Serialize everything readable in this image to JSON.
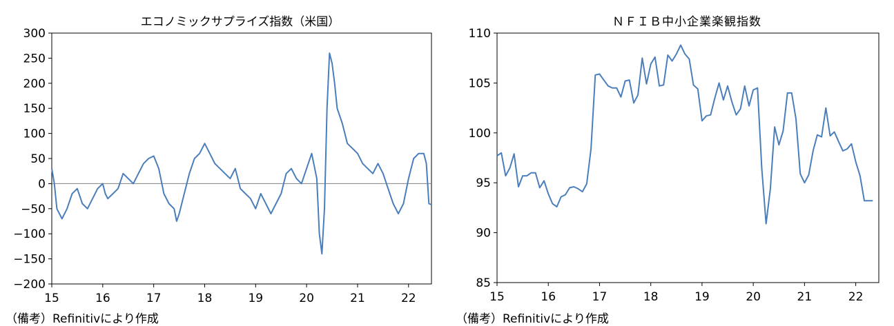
{
  "chart_data": [
    {
      "type": "line",
      "title": "エコノミックサプライズ指数（米国）",
      "source": "（備考）Refinitivにより作成",
      "xlabel": "",
      "ylabel": "",
      "xlim": [
        2015.0,
        2022.45
      ],
      "ylim": [
        -200,
        300
      ],
      "yticks": [
        "300",
        "250",
        "200",
        "150",
        "100",
        "50",
        "0",
        "−50",
        "−100",
        "−150",
        "−200"
      ],
      "ytick_values": [
        300,
        250,
        200,
        150,
        100,
        50,
        0,
        -50,
        -100,
        -150,
        -200
      ],
      "xticks": [
        "15",
        "16",
        "17",
        "18",
        "19",
        "20",
        "21",
        "22"
      ],
      "xtick_values": [
        2015,
        2016,
        2017,
        2018,
        2019,
        2020,
        2021,
        2022
      ],
      "zero_line": true,
      "grid": false,
      "color": "#4a7ebb",
      "x": [
        2015.0,
        2015.05,
        2015.1,
        2015.2,
        2015.3,
        2015.4,
        2015.5,
        2015.6,
        2015.7,
        2015.8,
        2015.9,
        2016.0,
        2016.05,
        2016.1,
        2016.2,
        2016.3,
        2016.4,
        2016.5,
        2016.6,
        2016.7,
        2016.8,
        2016.9,
        2017.0,
        2017.1,
        2017.2,
        2017.3,
        2017.4,
        2017.45,
        2017.5,
        2017.6,
        2017.7,
        2017.8,
        2017.9,
        2018.0,
        2018.1,
        2018.2,
        2018.3,
        2018.4,
        2018.5,
        2018.6,
        2018.7,
        2018.8,
        2018.9,
        2019.0,
        2019.1,
        2019.2,
        2019.3,
        2019.4,
        2019.5,
        2019.6,
        2019.7,
        2019.8,
        2019.9,
        2020.0,
        2020.1,
        2020.2,
        2020.25,
        2020.3,
        2020.35,
        2020.4,
        2020.45,
        2020.5,
        2020.55,
        2020.6,
        2020.7,
        2020.8,
        2020.9,
        2021.0,
        2021.1,
        2021.2,
        2021.3,
        2021.4,
        2021.5,
        2021.6,
        2021.7,
        2021.8,
        2021.9,
        2022.0,
        2022.1,
        2022.2,
        2022.3,
        2022.35,
        2022.4,
        2022.45
      ],
      "values": [
        30,
        0,
        -50,
        -70,
        -50,
        -20,
        -10,
        -40,
        -50,
        -30,
        -10,
        0,
        -20,
        -30,
        -20,
        -10,
        20,
        10,
        0,
        20,
        40,
        50,
        55,
        30,
        -20,
        -40,
        -50,
        -75,
        -60,
        -20,
        20,
        50,
        60,
        80,
        60,
        40,
        30,
        20,
        10,
        30,
        -10,
        -20,
        -30,
        -50,
        -20,
        -40,
        -60,
        -40,
        -20,
        20,
        30,
        10,
        0,
        30,
        60,
        10,
        -100,
        -140,
        -50,
        150,
        260,
        240,
        200,
        150,
        120,
        80,
        70,
        60,
        40,
        30,
        20,
        40,
        20,
        -10,
        -40,
        -60,
        -40,
        10,
        50,
        60,
        60,
        40,
        -40,
        -42
      ]
    },
    {
      "type": "line",
      "title": "ＮＦＩＢ中小企業楽観指数",
      "source": "（備考）Refinitivにより作成",
      "xlabel": "",
      "ylabel": "",
      "xlim": [
        2015.0,
        2022.45
      ],
      "ylim": [
        85,
        110
      ],
      "yticks": [
        "110",
        "105",
        "100",
        "95",
        "90",
        "85"
      ],
      "ytick_values": [
        110,
        105,
        100,
        95,
        90,
        85
      ],
      "xticks": [
        "15",
        "16",
        "17",
        "18",
        "19",
        "20",
        "21",
        "22"
      ],
      "xtick_values": [
        2015,
        2016,
        2017,
        2018,
        2019,
        2020,
        2021,
        2022
      ],
      "grid": false,
      "color": "#4a7ebb",
      "x": [
        2015.0,
        2015.083,
        2015.167,
        2015.25,
        2015.333,
        2015.417,
        2015.5,
        2015.583,
        2015.667,
        2015.75,
        2015.833,
        2015.917,
        2016.0,
        2016.083,
        2016.167,
        2016.25,
        2016.333,
        2016.417,
        2016.5,
        2016.583,
        2016.667,
        2016.75,
        2016.833,
        2016.917,
        2017.0,
        2017.083,
        2017.167,
        2017.25,
        2017.333,
        2017.417,
        2017.5,
        2017.583,
        2017.667,
        2017.75,
        2017.833,
        2017.917,
        2018.0,
        2018.083,
        2018.167,
        2018.25,
        2018.333,
        2018.417,
        2018.5,
        2018.583,
        2018.667,
        2018.75,
        2018.833,
        2018.917,
        2019.0,
        2019.083,
        2019.167,
        2019.25,
        2019.333,
        2019.417,
        2019.5,
        2019.583,
        2019.667,
        2019.75,
        2019.833,
        2019.917,
        2020.0,
        2020.083,
        2020.167,
        2020.25,
        2020.333,
        2020.417,
        2020.5,
        2020.583,
        2020.667,
        2020.75,
        2020.833,
        2020.917,
        2021.0,
        2021.083,
        2021.167,
        2021.25,
        2021.333,
        2021.417,
        2021.5,
        2021.583,
        2021.667,
        2021.75,
        2021.833,
        2021.917,
        2022.0,
        2022.083,
        2022.167,
        2022.25,
        2022.333
      ],
      "values": [
        97.7,
        98.0,
        95.7,
        96.5,
        97.9,
        94.6,
        95.7,
        95.7,
        96.0,
        96.0,
        94.5,
        95.2,
        93.9,
        92.9,
        92.6,
        93.6,
        93.8,
        94.5,
        94.6,
        94.4,
        94.1,
        94.9,
        98.4,
        105.8,
        105.9,
        105.3,
        104.7,
        104.5,
        104.5,
        103.6,
        105.2,
        105.3,
        103.0,
        103.8,
        107.5,
        104.9,
        106.9,
        107.6,
        104.7,
        104.8,
        107.8,
        107.2,
        107.9,
        108.8,
        107.9,
        107.4,
        104.8,
        104.4,
        101.2,
        101.7,
        101.8,
        103.5,
        105.0,
        103.3,
        104.7,
        103.1,
        101.8,
        102.4,
        104.7,
        102.7,
        104.3,
        104.5,
        96.4,
        90.9,
        94.4,
        100.6,
        98.8,
        100.2,
        104.0,
        104.0,
        101.4,
        95.9,
        95.0,
        95.8,
        98.2,
        99.8,
        99.6,
        102.5,
        99.7,
        100.1,
        99.1,
        98.2,
        98.4,
        98.9,
        97.1,
        95.7,
        93.2,
        93.2,
        93.2
      ]
    }
  ]
}
